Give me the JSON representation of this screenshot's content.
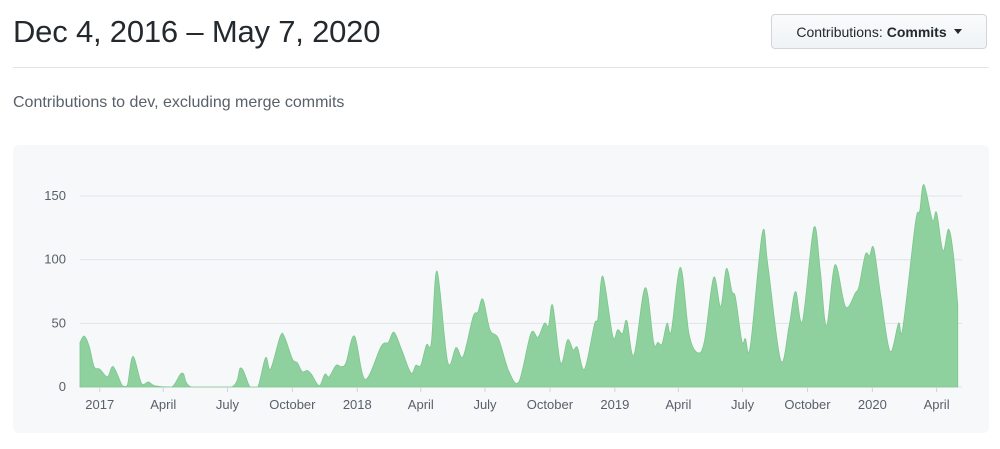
{
  "header": {
    "title": "Dec 4, 2016 – May 7, 2020",
    "dropdown_prefix": "Contributions:",
    "dropdown_value": "Commits"
  },
  "subtitle": "Contributions to dev, excluding merge commits",
  "colors": {
    "area": "#8fd19e",
    "area_stroke": "#7cc68d",
    "grid": "#e1e4e8",
    "panel": "#f6f8fa"
  },
  "chart_data": {
    "type": "area",
    "title": "",
    "xlabel": "",
    "ylabel": "",
    "xlim": [
      "2016-12-04",
      "2020-05-07"
    ],
    "ylim": [
      0,
      170
    ],
    "grid": true,
    "yticks": [
      0,
      50,
      100,
      150
    ],
    "xticks": [
      {
        "label": "2017",
        "date": "2017-01-01"
      },
      {
        "label": "April",
        "date": "2017-04-01"
      },
      {
        "label": "July",
        "date": "2017-07-01"
      },
      {
        "label": "October",
        "date": "2017-10-01"
      },
      {
        "label": "2018",
        "date": "2018-01-01"
      },
      {
        "label": "April",
        "date": "2018-04-01"
      },
      {
        "label": "July",
        "date": "2018-07-01"
      },
      {
        "label": "October",
        "date": "2018-10-01"
      },
      {
        "label": "2019",
        "date": "2019-01-01"
      },
      {
        "label": "April",
        "date": "2019-04-01"
      },
      {
        "label": "July",
        "date": "2019-07-01"
      },
      {
        "label": "October",
        "date": "2019-10-01"
      },
      {
        "label": "2020",
        "date": "2020-01-01"
      },
      {
        "label": "April",
        "date": "2020-04-01"
      }
    ],
    "points": [
      [
        "2016-12-04",
        35
      ],
      [
        "2016-12-10",
        40
      ],
      [
        "2016-12-17",
        32
      ],
      [
        "2016-12-24",
        16
      ],
      [
        "2017-01-01",
        14
      ],
      [
        "2017-01-12",
        8
      ],
      [
        "2017-01-20",
        16
      ],
      [
        "2017-02-02",
        1
      ],
      [
        "2017-02-09",
        1
      ],
      [
        "2017-02-17",
        24
      ],
      [
        "2017-03-01",
        3
      ],
      [
        "2017-03-11",
        4
      ],
      [
        "2017-03-20",
        1
      ],
      [
        "2017-04-13",
        0
      ],
      [
        "2017-04-28",
        11
      ],
      [
        "2017-05-11",
        0
      ],
      [
        "2017-07-07",
        0
      ],
      [
        "2017-07-20",
        15
      ],
      [
        "2017-08-02",
        0
      ],
      [
        "2017-08-13",
        0
      ],
      [
        "2017-08-24",
        23
      ],
      [
        "2017-08-31",
        14
      ],
      [
        "2017-09-14",
        40
      ],
      [
        "2017-09-20",
        39
      ],
      [
        "2017-10-01",
        22
      ],
      [
        "2017-10-08",
        19
      ],
      [
        "2017-10-15",
        12
      ],
      [
        "2017-10-22",
        13
      ],
      [
        "2017-10-28",
        10
      ],
      [
        "2017-11-08",
        1
      ],
      [
        "2017-11-16",
        10
      ],
      [
        "2017-11-22",
        8
      ],
      [
        "2017-12-02",
        17
      ],
      [
        "2017-12-09",
        16
      ],
      [
        "2017-12-16",
        19
      ],
      [
        "2017-12-28",
        40
      ],
      [
        "2018-01-12",
        6
      ],
      [
        "2018-02-04",
        32
      ],
      [
        "2018-02-14",
        35
      ],
      [
        "2018-02-22",
        43
      ],
      [
        "2018-03-05",
        29
      ],
      [
        "2018-03-18",
        11
      ],
      [
        "2018-03-25",
        17
      ],
      [
        "2018-04-01",
        17
      ],
      [
        "2018-04-09",
        33
      ],
      [
        "2018-04-16",
        35
      ],
      [
        "2018-04-24",
        91
      ],
      [
        "2018-05-09",
        20
      ],
      [
        "2018-05-21",
        31
      ],
      [
        "2018-05-31",
        24
      ],
      [
        "2018-06-14",
        55
      ],
      [
        "2018-06-21",
        59
      ],
      [
        "2018-06-28",
        69
      ],
      [
        "2018-07-08",
        45
      ],
      [
        "2018-07-20",
        38
      ],
      [
        "2018-08-04",
        12
      ],
      [
        "2018-08-18",
        4
      ],
      [
        "2018-09-04",
        42
      ],
      [
        "2018-09-14",
        39
      ],
      [
        "2018-09-23",
        50
      ],
      [
        "2018-09-29",
        48
      ],
      [
        "2018-10-05",
        64
      ],
      [
        "2018-10-16",
        19
      ],
      [
        "2018-10-26",
        37
      ],
      [
        "2018-11-03",
        29
      ],
      [
        "2018-11-09",
        31
      ],
      [
        "2018-11-19",
        14
      ],
      [
        "2018-12-03",
        49
      ],
      [
        "2018-12-08",
        54
      ],
      [
        "2018-12-15",
        87
      ],
      [
        "2018-12-29",
        40
      ],
      [
        "2019-01-05",
        45
      ],
      [
        "2019-01-12",
        42
      ],
      [
        "2019-01-18",
        52
      ],
      [
        "2019-01-28",
        25
      ],
      [
        "2019-02-13",
        78
      ],
      [
        "2019-02-25",
        35
      ],
      [
        "2019-03-03",
        35
      ],
      [
        "2019-03-09",
        34
      ],
      [
        "2019-03-16",
        50
      ],
      [
        "2019-03-22",
        44
      ],
      [
        "2019-04-04",
        94
      ],
      [
        "2019-04-16",
        42
      ],
      [
        "2019-04-28",
        27
      ],
      [
        "2019-05-08",
        36
      ],
      [
        "2019-05-21",
        86
      ],
      [
        "2019-05-31",
        63
      ],
      [
        "2019-06-08",
        93
      ],
      [
        "2019-06-16",
        75
      ],
      [
        "2019-06-21",
        70
      ],
      [
        "2019-06-30",
        36
      ],
      [
        "2019-07-05",
        38
      ],
      [
        "2019-07-12",
        32
      ],
      [
        "2019-07-29",
        121
      ],
      [
        "2019-08-06",
        95
      ],
      [
        "2019-08-24",
        21
      ],
      [
        "2019-09-05",
        48
      ],
      [
        "2019-09-14",
        75
      ],
      [
        "2019-09-24",
        52
      ],
      [
        "2019-10-10",
        125
      ],
      [
        "2019-10-19",
        92
      ],
      [
        "2019-10-28",
        48
      ],
      [
        "2019-11-09",
        96
      ],
      [
        "2019-11-24",
        63
      ],
      [
        "2019-12-08",
        74
      ],
      [
        "2019-12-13",
        79
      ],
      [
        "2019-12-22",
        104
      ],
      [
        "2019-12-28",
        103
      ],
      [
        "2020-01-03",
        109
      ],
      [
        "2020-01-13",
        71
      ],
      [
        "2020-01-26",
        28
      ],
      [
        "2020-02-07",
        50
      ],
      [
        "2020-02-13",
        46
      ],
      [
        "2020-03-02",
        129
      ],
      [
        "2020-03-08",
        138
      ],
      [
        "2020-03-14",
        159
      ],
      [
        "2020-03-26",
        131
      ],
      [
        "2020-04-01",
        137
      ],
      [
        "2020-04-10",
        107
      ],
      [
        "2020-04-18",
        124
      ],
      [
        "2020-04-25",
        103
      ],
      [
        "2020-05-01",
        64
      ]
    ]
  }
}
